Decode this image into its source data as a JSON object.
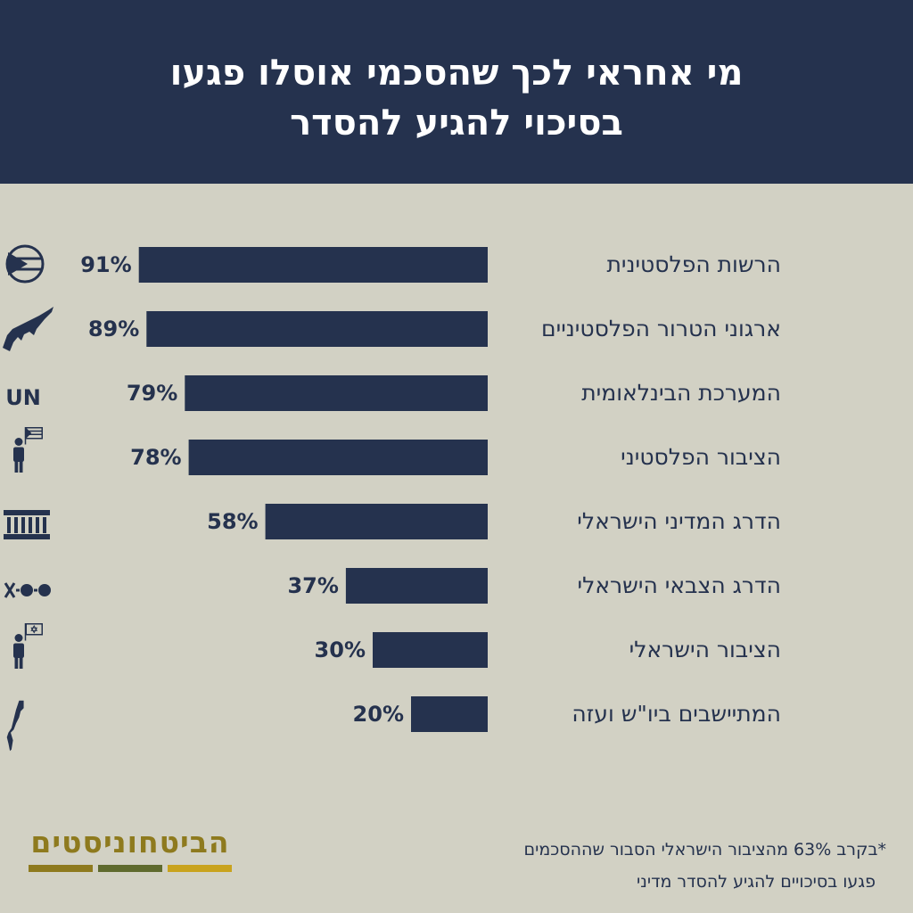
{
  "header": {
    "title_line1": "מי אחראי לכך שהסכמי אוסלו פגעו",
    "title_line2": "בסיכוי להגיע להסדר"
  },
  "chart_data": {
    "type": "bar",
    "orientation": "horizontal",
    "categories": [
      "הרשות הפלסטינית",
      "ארגוני הטרור הפלסטיניים",
      "המערכת הבינלאומית",
      "הציבור הפלסטיני",
      "הדרג המדיני הישראלי",
      "הדרג הצבאי הישראלי",
      "הציבור הישראלי",
      "המתיישבים ביו\"ש ועזה"
    ],
    "values": [
      91,
      89,
      79,
      78,
      58,
      37,
      30,
      20
    ],
    "value_labels": [
      "91%",
      "89%",
      "79%",
      "78%",
      "58%",
      "37%",
      "30%",
      "20%"
    ],
    "xlim": [
      0,
      100
    ],
    "grid": false,
    "legend": "none",
    "bar_color": "#25324e"
  },
  "icons": [
    "palestinian-flag-icon",
    "rifle-icon",
    "un-icon",
    "person-palestinian-flag-icon",
    "parliament-icon",
    "military-rank-icon",
    "person-israeli-flag-icon",
    "israel-map-icon"
  ],
  "un_icon_text": "UN",
  "logo": {
    "text": "הביטחוניסטים",
    "colors": [
      "#8e7a1e",
      "#5f6a2e",
      "#c9a31d"
    ]
  },
  "footnote": {
    "line1": "*בקרב 63% מהציבור הישראלי הסבור שההסכמים",
    "line2": "פגעו בסיכויים להגיע להסדר מדיני"
  },
  "colors": {
    "header_bg": "#25324e",
    "page_bg": "#d2d1c4",
    "text": "#25324e"
  }
}
